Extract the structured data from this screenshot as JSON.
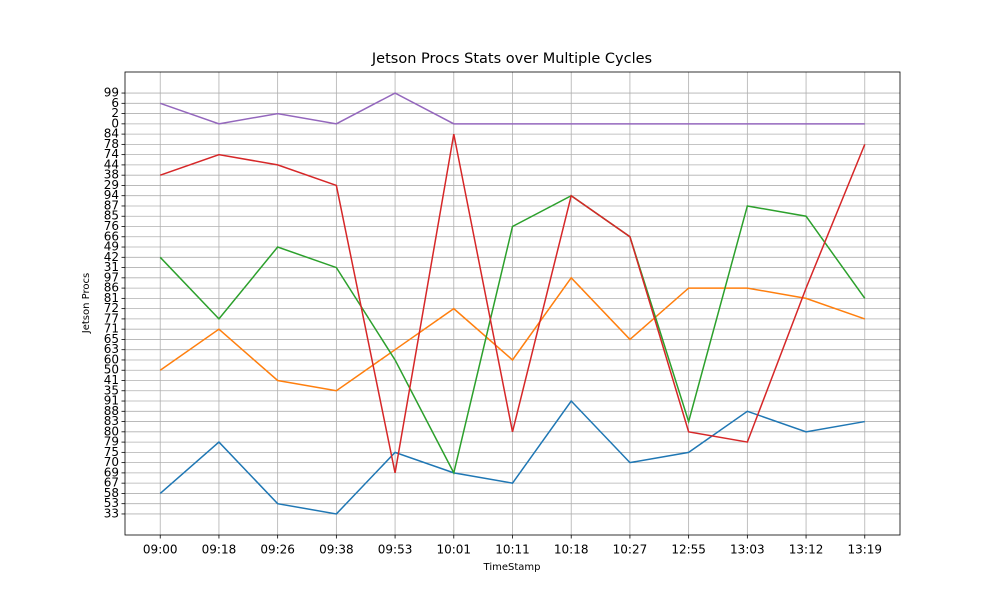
{
  "chart_data": {
    "type": "line",
    "title": "Jetson Procs Stats over Multiple Cycles",
    "x_label": "TimeStamp",
    "y_label": "Jetson Procs",
    "categories": [
      "09:00",
      "09:18",
      "09:26",
      "09:38",
      "09:53",
      "10:01",
      "10:11",
      "10:18",
      "10:27",
      "12:55",
      "13:03",
      "13:12",
      "13:19"
    ],
    "y_categories": [
      33,
      53,
      58,
      67,
      69,
      70,
      75,
      79,
      80,
      83,
      88,
      91,
      35,
      41,
      50,
      60,
      63,
      65,
      71,
      77,
      72,
      81,
      86,
      97,
      31,
      42,
      49,
      66,
      76,
      85,
      87,
      94,
      29,
      38,
      44,
      74,
      78,
      84,
      0,
      2,
      6,
      99
    ],
    "grid": true,
    "series": [
      {
        "color": "#1f77b4",
        "values": [
          58,
          79,
          53,
          33,
          75,
          69,
          67,
          91,
          70,
          75,
          88,
          80,
          83
        ]
      },
      {
        "color": "#ff7f0e",
        "values": [
          50,
          71,
          41,
          35,
          63,
          72,
          60,
          97,
          65,
          86,
          86,
          81,
          77
        ]
      },
      {
        "color": "#2ca02c",
        "values": [
          42,
          77,
          49,
          31,
          60,
          69,
          76,
          94,
          66,
          83,
          87,
          85,
          81
        ]
      },
      {
        "color": "#d62728",
        "values": [
          38,
          74,
          44,
          29,
          69,
          84,
          80,
          94,
          66,
          80,
          79,
          86,
          78
        ]
      },
      {
        "color": "#9467bd",
        "values": [
          6,
          0,
          2,
          0,
          99,
          0,
          0,
          0,
          0,
          0,
          0,
          0,
          0
        ]
      }
    ]
  }
}
